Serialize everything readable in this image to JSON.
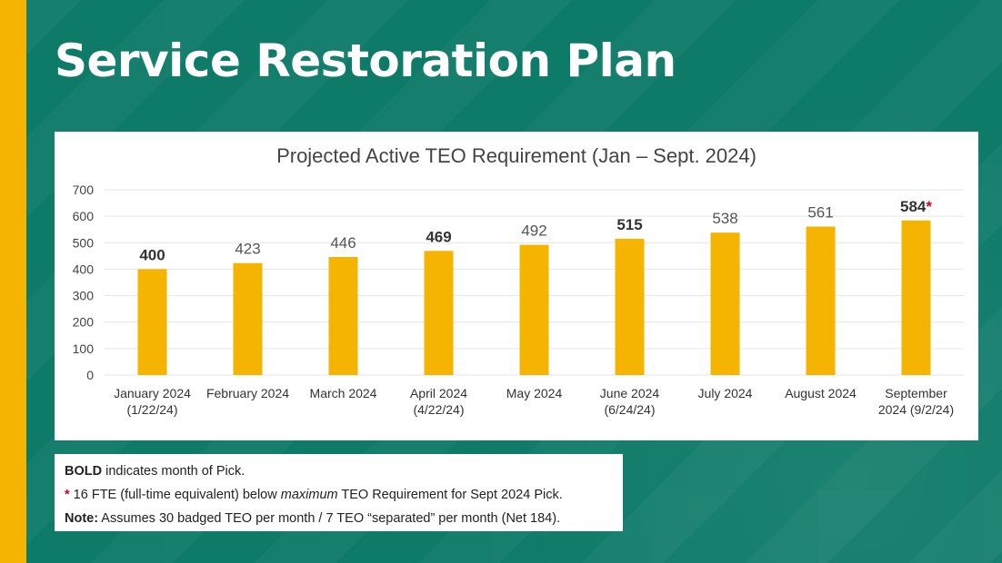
{
  "page_title": "Service Restoration Plan",
  "colors": {
    "accent": "#f4b400",
    "background": "#0e7a68",
    "asterisk": "#d0021b"
  },
  "chart_data": {
    "type": "bar",
    "title": "Projected Active TEO Requirement (Jan – Sept. 2024)",
    "categories": [
      [
        "January 2024",
        "(1/22/24)"
      ],
      [
        "February 2024"
      ],
      [
        "March 2024"
      ],
      [
        "April 2024",
        "(4/22/24)"
      ],
      [
        "May 2024"
      ],
      [
        "June 2024",
        "(6/24/24)"
      ],
      [
        "July 2024"
      ],
      [
        "August 2024"
      ],
      [
        "September",
        "2024 (9/2/24)"
      ]
    ],
    "values": [
      400,
      423,
      446,
      469,
      492,
      515,
      538,
      561,
      584
    ],
    "bold": [
      true,
      false,
      false,
      true,
      false,
      true,
      false,
      false,
      true
    ],
    "asterisk": [
      false,
      false,
      false,
      false,
      false,
      false,
      false,
      false,
      true
    ],
    "ylim": [
      0,
      700
    ],
    "yticks": [
      0,
      100,
      200,
      300,
      400,
      500,
      600,
      700
    ],
    "grid": true,
    "bar_color": "#f4b400"
  },
  "notes": {
    "line1_bold": "BOLD",
    "line1_rest": " indicates month of Pick.",
    "line2_star": "*",
    "line2_a": " 16 FTE (full-time equivalent) below ",
    "line2_em": "maximum",
    "line2_b": " TEO Requirement for Sept 2024 Pick.",
    "line3_bold": "Note:",
    "line3_rest": " Assumes 30 badged TEO per month / 7 TEO “separated” per month (Net 184)."
  }
}
